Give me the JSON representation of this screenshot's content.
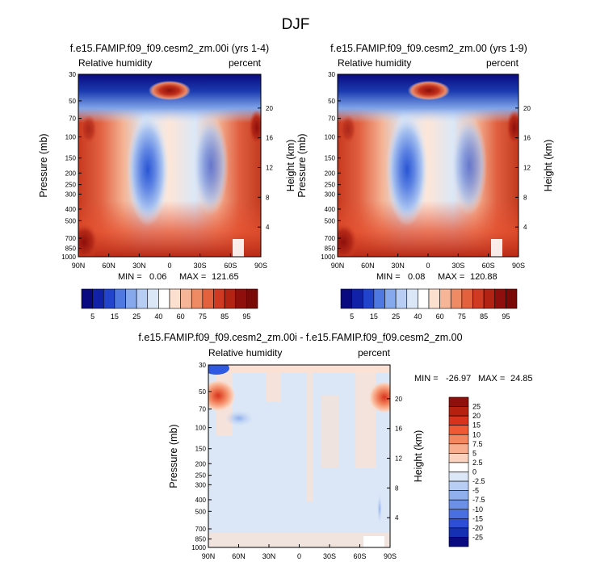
{
  "main_title": "DJF",
  "colors": {
    "dark_blue": "#0a0a80",
    "mid_blue": "#2e59e0",
    "light_blue": "#dbe8f8",
    "white": "#ffffff",
    "light_red": "#fbdac8",
    "mid_red": "#e4502f",
    "dark_red": "#8e0f0b"
  },
  "chart_data": [
    {
      "type": "heatmap",
      "title": "f.e15.FAMIP.f09_f09.cesm2_zm.00i (yrs 1-4)",
      "left_label": "Relative humidity",
      "right_label": "percent",
      "ylabel": "Pressure (mb)",
      "y2label": "Height (km)",
      "x_ticks": [
        "90N",
        "60N",
        "30N",
        "0",
        "30S",
        "60S",
        "90S"
      ],
      "y_ticks": [
        "30",
        "50",
        "70",
        "100",
        "150",
        "200",
        "250",
        "300",
        "400",
        "500",
        "700",
        "850",
        "1000"
      ],
      "y2_ticks": [
        "20",
        "16",
        "12",
        "8",
        "4"
      ],
      "stats": {
        "min_label": "MIN =",
        "min": "0.06",
        "max_label": "MAX =",
        "max": "121.65"
      },
      "colorbar": {
        "orientation": "horizontal",
        "labels": [
          "5",
          "15",
          "25",
          "40",
          "60",
          "75",
          "85",
          "95"
        ]
      }
    },
    {
      "type": "heatmap",
      "title": "f.e15.FAMIP.f09_f09.cesm2_zm.00 (yrs 1-9)",
      "left_label": "Relative humidity",
      "right_label": "percent",
      "ylabel": "Pressure (mb)",
      "y2label": "Height (km)",
      "x_ticks": [
        "90N",
        "60N",
        "30N",
        "0",
        "30S",
        "60S",
        "90S"
      ],
      "y_ticks": [
        "30",
        "50",
        "70",
        "100",
        "150",
        "200",
        "250",
        "300",
        "400",
        "500",
        "700",
        "850",
        "1000"
      ],
      "y2_ticks": [
        "20",
        "16",
        "12",
        "8",
        "4"
      ],
      "stats": {
        "min_label": "MIN =",
        "min": "0.08",
        "max_label": "MAX =",
        "max": "120.88"
      },
      "colorbar": {
        "orientation": "horizontal",
        "labels": [
          "5",
          "15",
          "25",
          "40",
          "60",
          "75",
          "85",
          "95"
        ]
      }
    },
    {
      "type": "heatmap",
      "title": "f.e15.FAMIP.f09_f09.cesm2_zm.00i - f.e15.FAMIP.f09_f09.cesm2_zm.00",
      "left_label": "Relative humidity",
      "right_label": "percent",
      "ylabel": "Pressure (mb)",
      "y2label": "Height (km)",
      "x_ticks": [
        "90N",
        "60N",
        "30N",
        "0",
        "30S",
        "60S",
        "90S"
      ],
      "y_ticks": [
        "30",
        "50",
        "70",
        "100",
        "150",
        "200",
        "250",
        "300",
        "400",
        "500",
        "700",
        "850",
        "1000"
      ],
      "y2_ticks": [
        "20",
        "16",
        "12",
        "8",
        "4"
      ],
      "stats": {
        "min_label": "MIN =",
        "min": "-26.97",
        "max_label": "MAX =",
        "max": "24.85"
      },
      "colorbar": {
        "orientation": "vertical",
        "labels": [
          "25",
          "20",
          "15",
          "10",
          "7.5",
          "5",
          "2.5",
          "0",
          "-2.5",
          "-5",
          "-7.5",
          "-10",
          "-15",
          "-20",
          "-25"
        ]
      }
    }
  ]
}
